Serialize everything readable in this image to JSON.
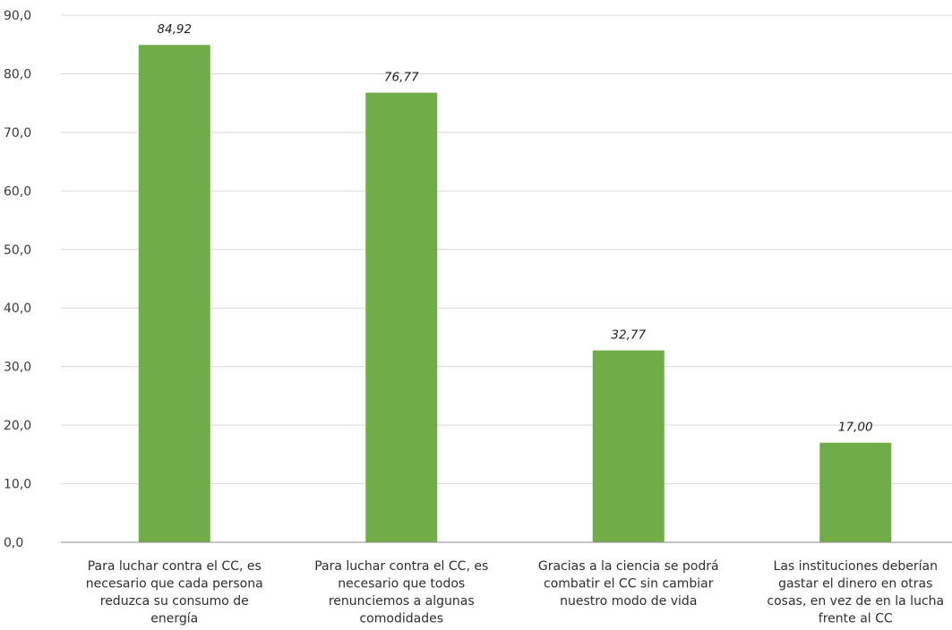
{
  "chart_data": {
    "type": "bar",
    "categories": [
      [
        "Para luchar contra el CC, es",
        "necesario que cada persona",
        "reduzca su consumo de",
        "energía"
      ],
      [
        "Para luchar contra el CC, es",
        "necesario que todos",
        "renunciemos a algunas",
        "comodidades"
      ],
      [
        "Gracias a la ciencia se podrá",
        "combatir el CC sin cambiar",
        "nuestro modo de vida"
      ],
      [
        "Las instituciones deberían",
        "gastar el dinero en otras",
        "cosas, en vez de en la lucha",
        "frente al CC"
      ]
    ],
    "values": [
      84.92,
      76.77,
      32.77,
      17.0
    ],
    "data_labels": [
      "84,92",
      "76,77",
      "32,77",
      "17,00"
    ],
    "ylim": [
      0,
      90
    ],
    "yticks": [
      0,
      10,
      20,
      30,
      40,
      50,
      60,
      70,
      80,
      90
    ],
    "ytick_labels": [
      "0,0",
      "10,0",
      "20,0",
      "30,0",
      "40,0",
      "50,0",
      "60,0",
      "70,0",
      "80,0",
      "90,0"
    ],
    "title": "",
    "xlabel": "",
    "ylabel": "",
    "grid": true,
    "legend": "none",
    "colors": {
      "bar": "#70ad47",
      "grid": "#d9d9d9",
      "axis": "#8c8c8c"
    }
  }
}
